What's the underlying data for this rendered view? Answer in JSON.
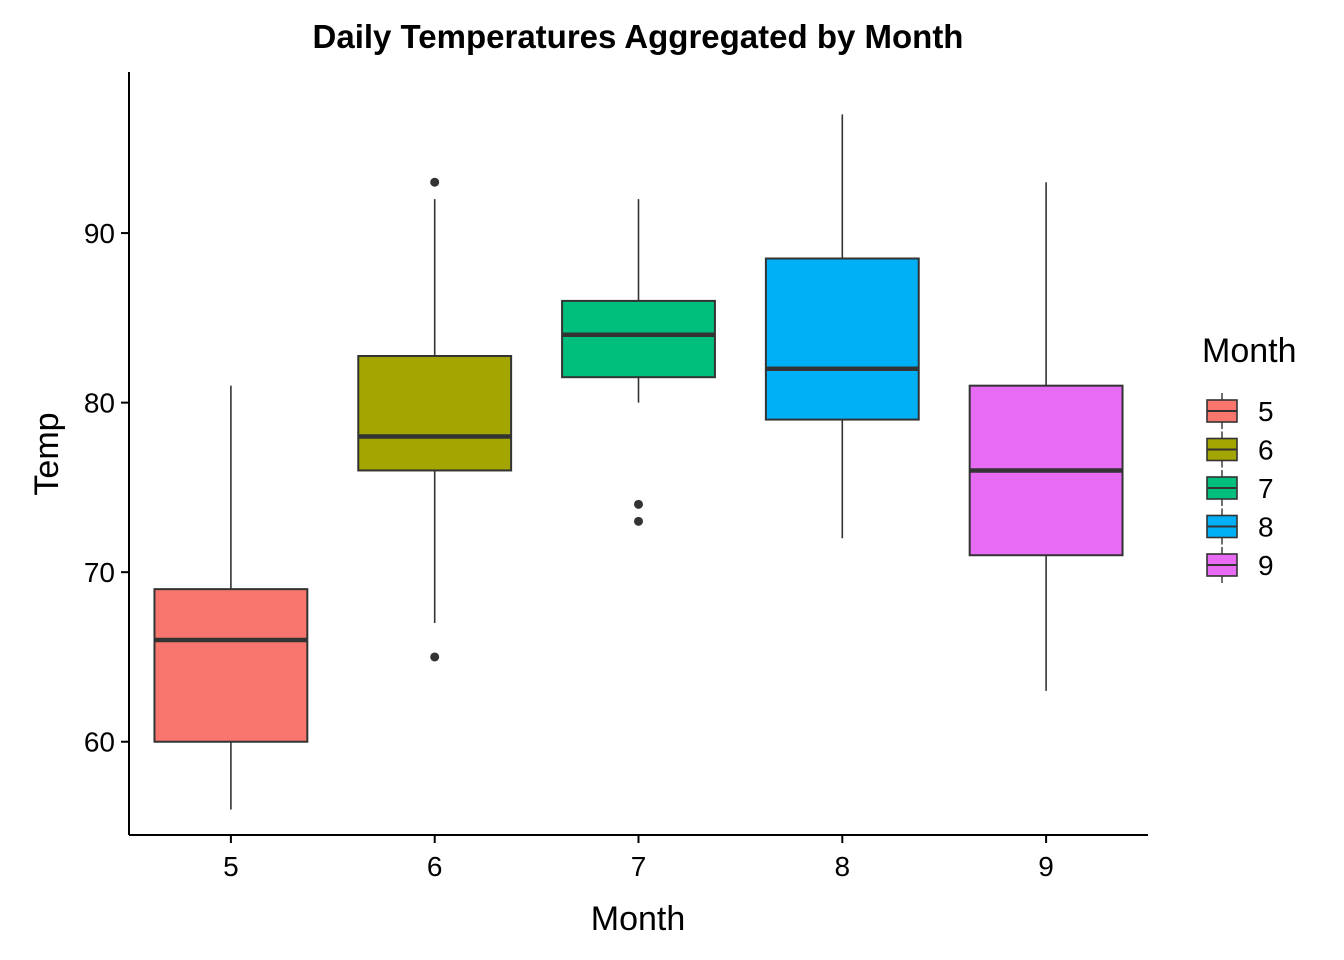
{
  "chart_data": {
    "type": "boxplot",
    "title": "Daily Temperatures Aggregated by Month",
    "xlabel": "Month",
    "ylabel": "Temp",
    "ylim": [
      54.5,
      99.5
    ],
    "yticks": [
      60,
      70,
      80,
      90
    ],
    "grid": false,
    "legend": {
      "title": "Month",
      "position": "right"
    },
    "categories": [
      "5",
      "6",
      "7",
      "8",
      "9"
    ],
    "colors": [
      "#F8766D",
      "#A3A500",
      "#00BF7D",
      "#00B0F6",
      "#E76BF3"
    ],
    "boxes": [
      {
        "month": "5",
        "whisker_low": 56,
        "q1": 60,
        "median": 66,
        "q3": 69,
        "whisker_high": 81,
        "outliers": []
      },
      {
        "month": "6",
        "whisker_low": 67,
        "q1": 76,
        "median": 78,
        "q3": 82.75,
        "whisker_high": 92,
        "outliers": [
          65,
          93
        ]
      },
      {
        "month": "7",
        "whisker_low": 80,
        "q1": 81.5,
        "median": 84,
        "q3": 86,
        "whisker_high": 92,
        "outliers": [
          73,
          74
        ]
      },
      {
        "month": "8",
        "whisker_low": 72,
        "q1": 79,
        "median": 82,
        "q3": 88.5,
        "whisker_high": 97,
        "outliers": []
      },
      {
        "month": "9",
        "whisker_low": 63,
        "q1": 71,
        "median": 76,
        "q3": 81,
        "whisker_high": 93,
        "outliers": []
      }
    ]
  }
}
